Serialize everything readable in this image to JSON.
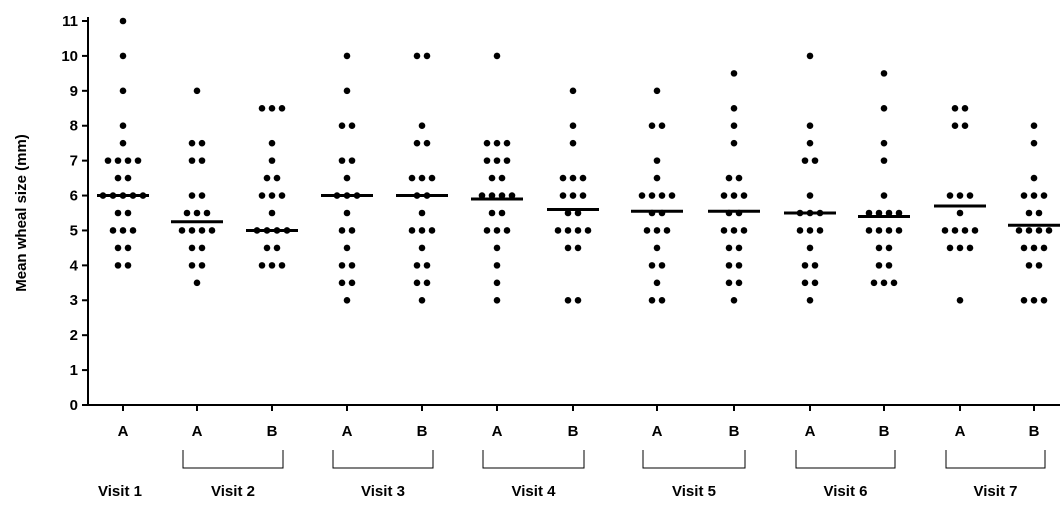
{
  "chart_data": {
    "type": "dot",
    "y_label": "Mean wheal size (mm)",
    "ylim": [
      0,
      11
    ],
    "yticks": [
      0,
      1,
      2,
      3,
      4,
      5,
      6,
      7,
      8,
      9,
      10,
      11
    ],
    "color": "#000000",
    "visits": [
      {
        "name": "Visit 1",
        "groups": [
          {
            "label": "A",
            "mean": 6,
            "values": [
              11,
              10,
              9,
              8,
              7.5,
              7,
              7,
              7,
              7,
              6.5,
              6.5,
              6,
              6,
              6,
              6,
              6,
              5.5,
              5.5,
              5,
              5,
              5,
              4.5,
              4.5,
              4,
              4
            ]
          }
        ]
      },
      {
        "name": "Visit 2",
        "groups": [
          {
            "label": "A",
            "mean": 5.25,
            "values": [
              9,
              7.5,
              7.5,
              7,
              7,
              6,
              6,
              5.5,
              5.5,
              5.5,
              5,
              5,
              5,
              5,
              4.5,
              4.5,
              4,
              4,
              3.5
            ]
          },
          {
            "label": "B",
            "mean": 5,
            "values": [
              8.5,
              8.5,
              8.5,
              7.5,
              7,
              6.5,
              6.5,
              6,
              6,
              6,
              5.5,
              5,
              5,
              5,
              5,
              4.5,
              4.5,
              4,
              4,
              4
            ]
          }
        ]
      },
      {
        "name": "Visit 3",
        "groups": [
          {
            "label": "A",
            "mean": 6,
            "values": [
              10,
              9,
              8,
              8,
              7,
              7,
              6.5,
              6,
              6,
              6,
              5.5,
              5,
              5,
              4.5,
              4,
              4,
              3.5,
              3.5,
              3
            ]
          },
          {
            "label": "B",
            "mean": 6,
            "values": [
              10,
              10,
              8,
              7.5,
              7.5,
              6.5,
              6.5,
              6.5,
              6,
              6,
              5.5,
              5,
              5,
              5,
              4.5,
              4,
              4,
              3.5,
              3.5,
              3
            ]
          }
        ]
      },
      {
        "name": "Visit 4",
        "groups": [
          {
            "label": "A",
            "mean": 5.9,
            "values": [
              10,
              7.5,
              7.5,
              7.5,
              7,
              7,
              7,
              6.5,
              6.5,
              6,
              6,
              6,
              6,
              5.5,
              5.5,
              5,
              5,
              5,
              4.5,
              4,
              3.5,
              3
            ]
          },
          {
            "label": "B",
            "mean": 5.6,
            "values": [
              9,
              8,
              7.5,
              6.5,
              6.5,
              6.5,
              6,
              6,
              6,
              5.5,
              5.5,
              5,
              5,
              5,
              5,
              4.5,
              4.5,
              3,
              3
            ]
          }
        ]
      },
      {
        "name": "Visit 5",
        "groups": [
          {
            "label": "A",
            "mean": 5.55,
            "values": [
              9,
              8,
              8,
              7,
              6.5,
              6,
              6,
              6,
              6,
              5.5,
              5.5,
              5,
              5,
              5,
              4.5,
              4,
              4,
              3.5,
              3,
              3
            ]
          },
          {
            "label": "B",
            "mean": 5.55,
            "values": [
              9.5,
              8.5,
              8,
              7.5,
              6.5,
              6.5,
              6,
              6,
              6,
              5.5,
              5.5,
              5,
              5,
              5,
              4.5,
              4.5,
              4,
              4,
              3.5,
              3.5,
              3
            ]
          }
        ]
      },
      {
        "name": "Visit 6",
        "groups": [
          {
            "label": "A",
            "mean": 5.5,
            "values": [
              10,
              8,
              7.5,
              7,
              7,
              6,
              5.5,
              5.5,
              5.5,
              5,
              5,
              5,
              4.5,
              4,
              4,
              3.5,
              3.5,
              3
            ]
          },
          {
            "label": "B",
            "mean": 5.4,
            "values": [
              9.5,
              8.5,
              7.5,
              7,
              6,
              5.5,
              5.5,
              5.5,
              5.5,
              5,
              5,
              5,
              5,
              4.5,
              4.5,
              4,
              4,
              3.5,
              3.5,
              3.5
            ]
          }
        ]
      },
      {
        "name": "Visit 7",
        "groups": [
          {
            "label": "A",
            "mean": 5.7,
            "values": [
              8.5,
              8.5,
              8,
              8,
              6,
              6,
              6,
              5.5,
              5,
              5,
              5,
              5,
              4.5,
              4.5,
              4.5,
              3
            ]
          },
          {
            "label": "B",
            "mean": 5.15,
            "values": [
              8,
              7.5,
              6.5,
              6,
              6,
              6,
              5.5,
              5.5,
              5,
              5,
              5,
              5,
              4.5,
              4.5,
              4.5,
              4,
              4,
              3,
              3,
              3
            ]
          }
        ]
      }
    ]
  }
}
